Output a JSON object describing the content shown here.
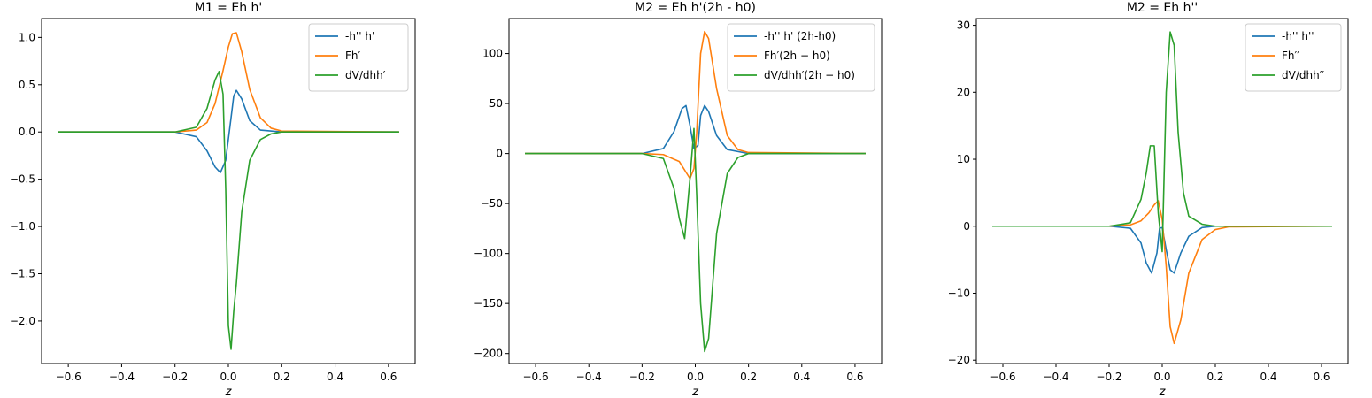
{
  "figure": {
    "xlabel": "z"
  },
  "chart_data": [
    {
      "type": "line",
      "title": "M1 = Eh h'",
      "xlabel": "z",
      "ylabel": "",
      "xlim": [
        -0.7,
        0.7
      ],
      "ylim": [
        -2.45,
        1.2
      ],
      "xticks": [
        -0.6,
        -0.4,
        -0.2,
        0.0,
        0.2,
        0.4,
        0.6
      ],
      "xtick_labels": [
        "−0.6",
        "−0.4",
        "−0.2",
        "0.0",
        "0.2",
        "0.4",
        "0.6"
      ],
      "yticks": [
        -2.0,
        -1.5,
        -1.0,
        -0.5,
        0.0,
        0.5,
        1.0
      ],
      "ytick_labels": [
        "−2.0",
        "−1.5",
        "−1.0",
        "−0.5",
        "0.0",
        "0.5",
        "1.0"
      ],
      "legend": "top-right",
      "grid": false,
      "series": [
        {
          "name": "-h'' h'",
          "color": "#1f77b4",
          "x": [
            -0.64,
            -0.2,
            -0.12,
            -0.08,
            -0.05,
            -0.03,
            -0.01,
            0.01,
            0.02,
            0.03,
            0.05,
            0.08,
            0.12,
            0.2,
            0.64
          ],
          "y": [
            0,
            0,
            -0.05,
            -0.2,
            -0.37,
            -0.43,
            -0.3,
            0.15,
            0.38,
            0.44,
            0.35,
            0.12,
            0.02,
            0,
            0
          ]
        },
        {
          "name": "Fh′",
          "color": "#ff7f0e",
          "x": [
            -0.64,
            -0.2,
            -0.12,
            -0.08,
            -0.05,
            -0.02,
            0.0,
            0.015,
            0.03,
            0.05,
            0.08,
            0.12,
            0.16,
            0.2,
            0.64
          ],
          "y": [
            0,
            0,
            0.02,
            0.1,
            0.3,
            0.65,
            0.9,
            1.04,
            1.05,
            0.85,
            0.45,
            0.15,
            0.04,
            0.01,
            0
          ]
        },
        {
          "name": "dV/dhh′",
          "color": "#2ca02c",
          "x": [
            -0.64,
            -0.2,
            -0.12,
            -0.08,
            -0.05,
            -0.035,
            -0.02,
            -0.01,
            0.0,
            0.01,
            0.02,
            0.03,
            0.05,
            0.08,
            0.12,
            0.16,
            0.2,
            0.64
          ],
          "y": [
            0,
            0,
            0.05,
            0.25,
            0.55,
            0.64,
            0.4,
            -0.6,
            -2.05,
            -2.3,
            -1.9,
            -1.6,
            -0.85,
            -0.3,
            -0.08,
            -0.02,
            0,
            0
          ]
        }
      ]
    },
    {
      "type": "line",
      "title": "M2 = Eh h'(2h - h0)",
      "xlabel": "z",
      "ylabel": "",
      "xlim": [
        -0.7,
        0.7
      ],
      "ylim": [
        -210,
        135
      ],
      "xticks": [
        -0.6,
        -0.4,
        -0.2,
        0.0,
        0.2,
        0.4,
        0.6
      ],
      "xtick_labels": [
        "−0.6",
        "−0.4",
        "−0.2",
        "0.0",
        "0.2",
        "0.4",
        "0.6"
      ],
      "yticks": [
        -200,
        -150,
        -100,
        -50,
        0,
        50,
        100
      ],
      "ytick_labels": [
        "−200",
        "−150",
        "−100",
        "−50",
        "0",
        "50",
        "100"
      ],
      "legend": "top-right",
      "grid": false,
      "series": [
        {
          "name": "-h'' h' (2h-h0)",
          "color": "#1f77b4",
          "x": [
            -0.64,
            -0.2,
            -0.12,
            -0.08,
            -0.05,
            -0.035,
            -0.02,
            -0.005,
            0.01,
            0.02,
            0.035,
            0.05,
            0.08,
            0.12,
            0.2,
            0.64
          ],
          "y": [
            0,
            0,
            5,
            22,
            45,
            48,
            28,
            5,
            8,
            38,
            48,
            42,
            18,
            4,
            0,
            0
          ]
        },
        {
          "name": "Fh′(2h − h0)",
          "color": "#ff7f0e",
          "x": [
            -0.64,
            -0.2,
            -0.12,
            -0.06,
            -0.02,
            -0.005,
            0.005,
            0.02,
            0.035,
            0.05,
            0.08,
            0.12,
            0.16,
            0.2,
            0.64
          ],
          "y": [
            0,
            0,
            -1,
            -8,
            -25,
            -15,
            20,
            100,
            122,
            115,
            65,
            18,
            4,
            1,
            0
          ]
        },
        {
          "name": "dV/dhh′(2h − h0)",
          "color": "#2ca02c",
          "x": [
            -0.64,
            -0.2,
            -0.12,
            -0.08,
            -0.06,
            -0.04,
            -0.02,
            -0.005,
            0.005,
            0.02,
            0.035,
            0.05,
            0.08,
            0.12,
            0.16,
            0.2,
            0.64
          ],
          "y": [
            0,
            0,
            -5,
            -35,
            -65,
            -85,
            -25,
            25,
            -40,
            -150,
            -198,
            -185,
            -80,
            -20,
            -4,
            0,
            0
          ]
        }
      ]
    },
    {
      "type": "line",
      "title": "M2 = Eh h''",
      "xlabel": "z",
      "ylabel": "",
      "xlim": [
        -0.7,
        0.7
      ],
      "ylim": [
        -20.5,
        31
      ],
      "xticks": [
        -0.6,
        -0.4,
        -0.2,
        0.0,
        0.2,
        0.4,
        0.6
      ],
      "xtick_labels": [
        "−0.6",
        "−0.4",
        "−0.2",
        "0.0",
        "0.2",
        "0.4",
        "0.6"
      ],
      "yticks": [
        -20,
        -10,
        0,
        10,
        20,
        30
      ],
      "ytick_labels": [
        "−20",
        "−10",
        "0",
        "10",
        "20",
        "30"
      ],
      "legend": "top-right",
      "grid": false,
      "series": [
        {
          "name": "-h'' h''",
          "color": "#1f77b4",
          "x": [
            -0.64,
            -0.2,
            -0.12,
            -0.08,
            -0.06,
            -0.04,
            -0.02,
            -0.01,
            0.0,
            0.015,
            0.03,
            0.045,
            0.07,
            0.1,
            0.15,
            0.2,
            0.64
          ],
          "y": [
            0,
            0,
            -0.3,
            -2.5,
            -5.5,
            -7,
            -4,
            -0.3,
            -0.2,
            -3.5,
            -6.5,
            -7,
            -4,
            -1.5,
            -0.2,
            0,
            0
          ]
        },
        {
          "name": "Fh′′",
          "color": "#ff7f0e",
          "x": [
            -0.64,
            -0.2,
            -0.12,
            -0.08,
            -0.05,
            -0.03,
            -0.015,
            0.0,
            0.015,
            0.03,
            0.045,
            0.07,
            0.1,
            0.15,
            0.2,
            0.25,
            0.64
          ],
          "y": [
            0,
            0,
            0.2,
            0.8,
            2,
            3.2,
            3.8,
            1,
            -6,
            -15,
            -17.5,
            -14,
            -7,
            -2,
            -0.5,
            -0.1,
            0
          ]
        },
        {
          "name": "dV/dhh′′",
          "color": "#2ca02c",
          "x": [
            -0.64,
            -0.2,
            -0.12,
            -0.08,
            -0.06,
            -0.045,
            -0.03,
            -0.015,
            0.0,
            0.015,
            0.03,
            0.045,
            0.06,
            0.08,
            0.1,
            0.15,
            0.2,
            0.64
          ],
          "y": [
            0,
            0,
            0.5,
            4,
            8,
            12,
            12,
            2,
            -3.8,
            20,
            29,
            27,
            14,
            5,
            1.5,
            0.3,
            0,
            0
          ]
        }
      ]
    }
  ]
}
